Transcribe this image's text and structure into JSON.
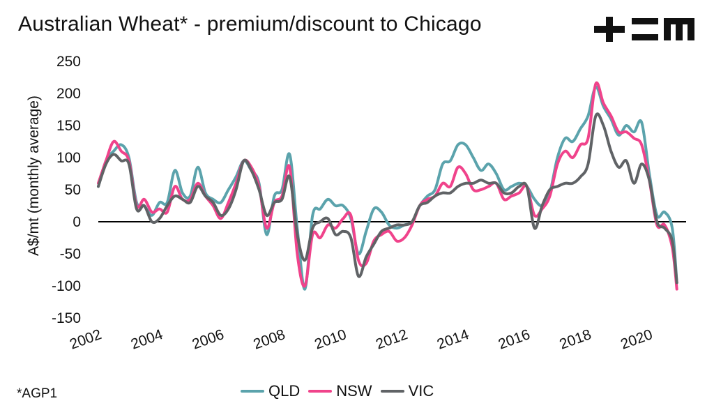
{
  "header": {
    "title": "Australian Wheat* - premium/discount to Chicago",
    "logo": "+EM"
  },
  "footnote": "*AGP1",
  "chart_data": {
    "type": "line",
    "title": "Australian Wheat* - premium/discount to Chicago",
    "xlabel": "",
    "ylabel": "A$/mt (monthly average)",
    "ylim": [
      -150,
      250
    ],
    "yticks": [
      250,
      200,
      150,
      100,
      50,
      0,
      -50,
      -100,
      -150
    ],
    "xlim": [
      2002,
      2021.2
    ],
    "xticks": [
      2002,
      2004,
      2006,
      2008,
      2010,
      2012,
      2014,
      2016,
      2018,
      2020
    ],
    "xtick_labels": [
      "2002",
      "2004",
      "2006",
      "2008",
      "2010",
      "2012",
      "2014",
      "2016",
      "2018",
      "2020"
    ],
    "grid": false,
    "zero_line": true,
    "legend_position": "bottom",
    "x": [
      2002.0,
      2002.25,
      2002.5,
      2002.75,
      2003.0,
      2003.25,
      2003.5,
      2003.75,
      2004.0,
      2004.25,
      2004.5,
      2004.75,
      2005.0,
      2005.25,
      2005.5,
      2005.75,
      2006.0,
      2006.25,
      2006.5,
      2006.75,
      2007.0,
      2007.25,
      2007.5,
      2007.75,
      2008.0,
      2008.25,
      2008.5,
      2008.75,
      2009.0,
      2009.25,
      2009.5,
      2009.75,
      2010.0,
      2010.25,
      2010.5,
      2010.75,
      2011.0,
      2011.25,
      2011.5,
      2011.75,
      2012.0,
      2012.25,
      2012.5,
      2012.75,
      2013.0,
      2013.25,
      2013.5,
      2013.75,
      2014.0,
      2014.25,
      2014.5,
      2014.75,
      2015.0,
      2015.25,
      2015.5,
      2015.75,
      2016.0,
      2016.25,
      2016.5,
      2016.75,
      2017.0,
      2017.25,
      2017.5,
      2017.75,
      2018.0,
      2018.25,
      2018.5,
      2018.75,
      2019.0,
      2019.25,
      2019.5,
      2019.75,
      2020.0,
      2020.25,
      2020.5,
      2020.75,
      2020.9
    ],
    "series": [
      {
        "name": "QLD",
        "color": "#5ba3ac",
        "values": [
          55,
          95,
          110,
          120,
          100,
          30,
          25,
          10,
          30,
          30,
          80,
          45,
          40,
          85,
          45,
          35,
          30,
          50,
          70,
          95,
          80,
          60,
          -20,
          40,
          50,
          105,
          -10,
          -105,
          10,
          20,
          35,
          25,
          25,
          5,
          -50,
          -15,
          20,
          15,
          -5,
          -10,
          -5,
          0,
          25,
          40,
          50,
          90,
          95,
          120,
          120,
          100,
          80,
          90,
          75,
          50,
          55,
          60,
          55,
          35,
          25,
          45,
          100,
          130,
          125,
          145,
          165,
          210,
          180,
          160,
          135,
          150,
          140,
          155,
          75,
          10,
          15,
          -10,
          -95
        ]
      },
      {
        "name": "NSW",
        "color": "#f0438b",
        "values": [
          60,
          95,
          125,
          110,
          95,
          25,
          35,
          15,
          20,
          15,
          55,
          35,
          35,
          60,
          40,
          25,
          5,
          30,
          60,
          95,
          85,
          55,
          -10,
          30,
          40,
          85,
          -50,
          -100,
          -20,
          -25,
          -5,
          -10,
          5,
          10,
          -60,
          -65,
          -30,
          -20,
          -15,
          -30,
          -25,
          -5,
          25,
          35,
          40,
          60,
          55,
          85,
          75,
          50,
          50,
          55,
          60,
          35,
          40,
          45,
          55,
          10,
          20,
          40,
          90,
          110,
          100,
          120,
          130,
          215,
          185,
          165,
          140,
          140,
          130,
          120,
          65,
          -5,
          -5,
          -40,
          -105
        ]
      },
      {
        "name": "VIC",
        "color": "#606366",
        "values": [
          55,
          90,
          105,
          95,
          90,
          20,
          25,
          0,
          5,
          25,
          40,
          35,
          30,
          55,
          40,
          30,
          10,
          20,
          50,
          95,
          80,
          50,
          10,
          30,
          35,
          70,
          -20,
          -60,
          -10,
          0,
          5,
          -20,
          -15,
          -25,
          -85,
          -55,
          -35,
          -15,
          -10,
          -5,
          -5,
          0,
          25,
          30,
          40,
          45,
          45,
          55,
          60,
          60,
          65,
          60,
          60,
          45,
          45,
          55,
          55,
          -10,
          25,
          50,
          55,
          60,
          60,
          70,
          90,
          165,
          150,
          110,
          85,
          95,
          60,
          90,
          65,
          0,
          -10,
          -30,
          -95
        ]
      }
    ]
  }
}
